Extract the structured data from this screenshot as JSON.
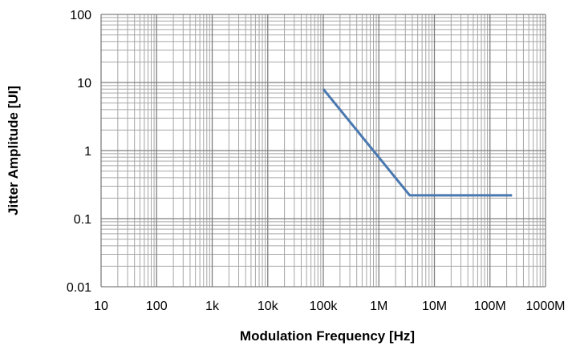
{
  "chart_data": {
    "type": "line",
    "title": "",
    "xlabel": "Modulation Frequency [Hz]",
    "ylabel": "Jitter Amplitude [UI]",
    "x_scale": "log",
    "y_scale": "log",
    "xlim": [
      10,
      1000000000
    ],
    "ylim": [
      0.01,
      100
    ],
    "grid": true,
    "x_tick_values": [
      10,
      100,
      1000,
      10000,
      100000,
      1000000,
      10000000,
      100000000,
      1000000000
    ],
    "x_tick_labels": [
      "10",
      "100",
      "1k",
      "10k",
      "100k",
      "1M",
      "10M",
      "100M",
      "1000M"
    ],
    "y_tick_values": [
      0.01,
      0.1,
      1,
      10,
      100
    ],
    "y_tick_labels": [
      "0.01",
      "0.1",
      "1",
      "10",
      "100"
    ],
    "series": [
      {
        "color": "#4a78b0",
        "x": [
          100000,
          3600000,
          250000000
        ],
        "y": [
          8,
          0.22,
          0.22
        ]
      }
    ]
  }
}
